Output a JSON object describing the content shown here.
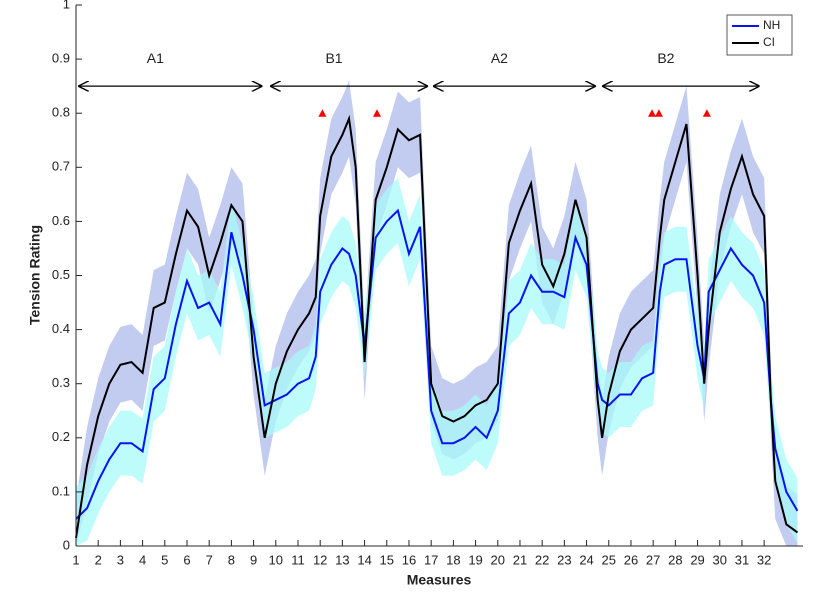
{
  "chart_data": {
    "type": "line",
    "xlabel": "Measures",
    "ylabel": "Tension Rating",
    "xlim": [
      1,
      33.75
    ],
    "ylim": [
      0,
      1
    ],
    "xticks": [
      1,
      2,
      3,
      4,
      5,
      6,
      7,
      8,
      9,
      10,
      11,
      12,
      13,
      14,
      15,
      16,
      17,
      18,
      19,
      20,
      21,
      22,
      23,
      24,
      25,
      26,
      27,
      28,
      29,
      30,
      31,
      32
    ],
    "yticks": [
      0,
      0.1,
      0.2,
      0.3,
      0.4,
      0.5,
      0.6,
      0.7,
      0.8,
      0.9,
      1
    ],
    "legend": "upper right",
    "x": [
      1,
      1.5,
      2,
      2.5,
      3,
      3.5,
      4,
      4.5,
      5,
      5.5,
      6,
      6.5,
      7,
      7.5,
      8,
      8.5,
      9,
      9.5,
      10,
      10.5,
      11,
      11.5,
      11.8,
      12,
      12.5,
      13,
      13.3,
      13.6,
      14,
      14.5,
      15,
      15.5,
      16,
      16.5,
      17,
      17.5,
      18,
      18.5,
      19,
      19.5,
      20,
      20.5,
      21,
      21.5,
      22,
      22.5,
      23,
      23.5,
      24,
      24.5,
      24.7,
      25,
      25.5,
      26,
      26.5,
      27,
      27.3,
      27.5,
      28,
      28.5,
      29,
      29.3,
      29.5,
      30,
      30.5,
      31,
      31.5,
      32,
      32.3,
      32.5,
      33,
      33.5
    ],
    "series": [
      {
        "name": "NH",
        "color": "#0a14f0",
        "band_color": "#a8fafa",
        "values": [
          0.05,
          0.07,
          0.12,
          0.16,
          0.19,
          0.19,
          0.175,
          0.29,
          0.31,
          0.41,
          0.49,
          0.44,
          0.45,
          0.41,
          0.58,
          0.5,
          0.4,
          0.26,
          0.27,
          0.28,
          0.3,
          0.31,
          0.35,
          0.47,
          0.52,
          0.55,
          0.54,
          0.5,
          0.37,
          0.57,
          0.6,
          0.62,
          0.54,
          0.59,
          0.25,
          0.19,
          0.19,
          0.2,
          0.22,
          0.2,
          0.25,
          0.43,
          0.45,
          0.5,
          0.47,
          0.47,
          0.46,
          0.57,
          0.52,
          0.3,
          0.27,
          0.26,
          0.28,
          0.28,
          0.31,
          0.32,
          0.47,
          0.52,
          0.53,
          0.53,
          0.37,
          0.31,
          0.47,
          0.51,
          0.55,
          0.52,
          0.5,
          0.45,
          0.27,
          0.18,
          0.1,
          0.065
        ],
        "upper": [
          0.11,
          0.13,
          0.18,
          0.22,
          0.25,
          0.25,
          0.235,
          0.35,
          0.37,
          0.47,
          0.55,
          0.5,
          0.51,
          0.47,
          0.64,
          0.56,
          0.46,
          0.32,
          0.33,
          0.34,
          0.36,
          0.37,
          0.41,
          0.53,
          0.58,
          0.61,
          0.6,
          0.56,
          0.43,
          0.63,
          0.66,
          0.68,
          0.6,
          0.65,
          0.31,
          0.25,
          0.25,
          0.26,
          0.28,
          0.26,
          0.31,
          0.49,
          0.51,
          0.56,
          0.53,
          0.53,
          0.52,
          0.63,
          0.58,
          0.36,
          0.33,
          0.32,
          0.34,
          0.34,
          0.37,
          0.38,
          0.53,
          0.58,
          0.59,
          0.59,
          0.43,
          0.37,
          0.53,
          0.57,
          0.61,
          0.58,
          0.56,
          0.51,
          0.33,
          0.24,
          0.16,
          0.125
        ],
        "lower": [
          0,
          0.01,
          0.06,
          0.1,
          0.13,
          0.13,
          0.115,
          0.23,
          0.25,
          0.35,
          0.43,
          0.38,
          0.39,
          0.35,
          0.52,
          0.44,
          0.34,
          0.2,
          0.21,
          0.22,
          0.24,
          0.25,
          0.29,
          0.41,
          0.46,
          0.49,
          0.48,
          0.44,
          0.31,
          0.51,
          0.54,
          0.56,
          0.48,
          0.53,
          0.19,
          0.13,
          0.13,
          0.14,
          0.16,
          0.14,
          0.19,
          0.37,
          0.39,
          0.44,
          0.41,
          0.41,
          0.4,
          0.51,
          0.46,
          0.24,
          0.21,
          0.2,
          0.22,
          0.22,
          0.25,
          0.26,
          0.41,
          0.46,
          0.47,
          0.47,
          0.31,
          0.25,
          0.41,
          0.45,
          0.49,
          0.46,
          0.44,
          0.39,
          0.21,
          0.12,
          0.04,
          0.005
        ]
      },
      {
        "name": "CI",
        "color": "#000000",
        "band_color": "#c2cbf0",
        "values": [
          0.015,
          0.15,
          0.24,
          0.3,
          0.335,
          0.34,
          0.32,
          0.44,
          0.45,
          0.54,
          0.62,
          0.59,
          0.5,
          0.56,
          0.63,
          0.6,
          0.35,
          0.2,
          0.3,
          0.36,
          0.4,
          0.43,
          0.46,
          0.61,
          0.72,
          0.76,
          0.79,
          0.7,
          0.34,
          0.64,
          0.7,
          0.77,
          0.75,
          0.76,
          0.3,
          0.24,
          0.23,
          0.24,
          0.26,
          0.27,
          0.3,
          0.56,
          0.62,
          0.67,
          0.52,
          0.48,
          0.54,
          0.64,
          0.57,
          0.27,
          0.2,
          0.28,
          0.36,
          0.4,
          0.42,
          0.44,
          0.57,
          0.64,
          0.71,
          0.78,
          0.5,
          0.3,
          0.4,
          0.58,
          0.66,
          0.72,
          0.65,
          0.61,
          0.27,
          0.12,
          0.04,
          0.025
        ],
        "upper": [
          0.085,
          0.22,
          0.31,
          0.37,
          0.405,
          0.41,
          0.39,
          0.51,
          0.52,
          0.61,
          0.69,
          0.66,
          0.57,
          0.63,
          0.7,
          0.67,
          0.42,
          0.27,
          0.37,
          0.43,
          0.47,
          0.5,
          0.53,
          0.68,
          0.79,
          0.83,
          0.86,
          0.77,
          0.41,
          0.71,
          0.77,
          0.84,
          0.82,
          0.83,
          0.37,
          0.31,
          0.3,
          0.31,
          0.33,
          0.34,
          0.37,
          0.63,
          0.69,
          0.74,
          0.59,
          0.55,
          0.61,
          0.71,
          0.64,
          0.34,
          0.27,
          0.35,
          0.43,
          0.47,
          0.49,
          0.51,
          0.64,
          0.71,
          0.78,
          0.85,
          0.57,
          0.37,
          0.47,
          0.65,
          0.73,
          0.79,
          0.72,
          0.68,
          0.34,
          0.19,
          0.11,
          0.095
        ],
        "lower": [
          0,
          0.08,
          0.17,
          0.23,
          0.265,
          0.27,
          0.25,
          0.37,
          0.38,
          0.47,
          0.55,
          0.52,
          0.43,
          0.49,
          0.56,
          0.53,
          0.28,
          0.13,
          0.23,
          0.29,
          0.33,
          0.36,
          0.39,
          0.54,
          0.65,
          0.69,
          0.72,
          0.63,
          0.27,
          0.57,
          0.63,
          0.7,
          0.68,
          0.69,
          0.23,
          0.17,
          0.16,
          0.17,
          0.19,
          0.2,
          0.23,
          0.49,
          0.55,
          0.6,
          0.45,
          0.41,
          0.47,
          0.57,
          0.5,
          0.2,
          0.13,
          0.21,
          0.29,
          0.33,
          0.35,
          0.37,
          0.5,
          0.57,
          0.64,
          0.71,
          0.43,
          0.23,
          0.33,
          0.51,
          0.59,
          0.65,
          0.58,
          0.54,
          0.2,
          0.05,
          0,
          0
        ]
      }
    ],
    "sections": [
      {
        "label": "A1",
        "start": 1.1,
        "end": 9.4,
        "y": 0.85
      },
      {
        "label": "B1",
        "start": 9.74,
        "end": 16.86,
        "y": 0.85
      },
      {
        "label": "A2",
        "start": 17.08,
        "end": 24.42,
        "y": 0.85
      },
      {
        "label": "B2",
        "start": 24.7,
        "end": 31.8,
        "y": 0.85
      }
    ],
    "markers": {
      "color": "#ff0000",
      "x": [
        12.1,
        14.56,
        26.95,
        27.26,
        29.42
      ],
      "y": [
        0.8,
        0.8,
        0.8,
        0.8,
        0.8
      ]
    }
  }
}
